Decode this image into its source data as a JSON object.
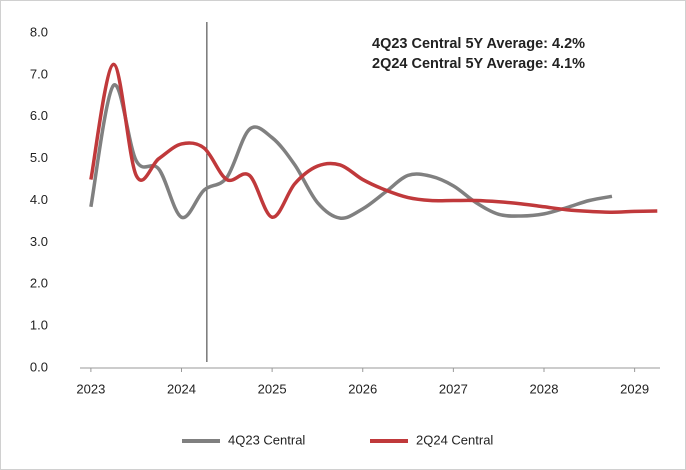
{
  "chart_data": {
    "type": "line",
    "annotations": [
      "4Q23 Central 5Y Average: 4.2%",
      "2Q24 Central 5Y Average: 4.1%"
    ],
    "series": [
      {
        "name": "4Q23 Central",
        "color": "#808080",
        "x": [
          2023,
          2023.25,
          2023.5,
          2023.75,
          2024,
          2024.25,
          2024.5,
          2024.75,
          2025,
          2025.25,
          2025.5,
          2025.75,
          2026,
          2026.25,
          2026.5,
          2026.75,
          2027,
          2027.25,
          2027.5,
          2027.75,
          2028,
          2028.25,
          2028.5,
          2028.75
        ],
        "values": [
          3.85,
          6.75,
          4.95,
          4.75,
          3.6,
          4.25,
          4.55,
          5.7,
          5.5,
          4.85,
          3.95,
          3.58,
          3.8,
          4.2,
          4.6,
          4.58,
          4.35,
          3.95,
          3.67,
          3.63,
          3.68,
          3.83,
          4.0,
          4.1
        ]
      },
      {
        "name": "2Q24 Central",
        "color": "#c0393b",
        "x": [
          2023,
          2023.25,
          2023.5,
          2023.75,
          2024,
          2024.25,
          2024.5,
          2024.75,
          2025,
          2025.25,
          2025.5,
          2025.75,
          2026,
          2026.25,
          2026.5,
          2026.75,
          2027,
          2027.25,
          2027.5,
          2027.75,
          2028,
          2028.25,
          2028.5,
          2028.75,
          2029,
          2029.25
        ],
        "values": [
          4.5,
          7.25,
          4.6,
          5.0,
          5.35,
          5.25,
          4.5,
          4.6,
          3.6,
          4.4,
          4.82,
          4.85,
          4.5,
          4.25,
          4.07,
          4.0,
          4.0,
          4.0,
          3.97,
          3.92,
          3.85,
          3.78,
          3.74,
          3.72,
          3.74,
          3.75
        ]
      }
    ],
    "vline_x": 2024.28,
    "xlim": [
      2022.88,
      2029.28
    ],
    "xticks": [
      2023,
      2024,
      2025,
      2026,
      2027,
      2028,
      2029
    ],
    "ylim": [
      0,
      8
    ],
    "yticks": [
      {
        "value": 0,
        "label": "0.0"
      },
      {
        "value": 1,
        "label": "1.0"
      },
      {
        "value": 2,
        "label": "2.0"
      },
      {
        "value": 3,
        "label": "3.0"
      },
      {
        "value": 4,
        "label": "4.0"
      },
      {
        "value": 5,
        "label": "5.0"
      },
      {
        "value": 6,
        "label": "6.0"
      },
      {
        "value": 7,
        "label": "7.0"
      },
      {
        "value": 8,
        "label": "8.0"
      }
    ],
    "grid": false
  }
}
